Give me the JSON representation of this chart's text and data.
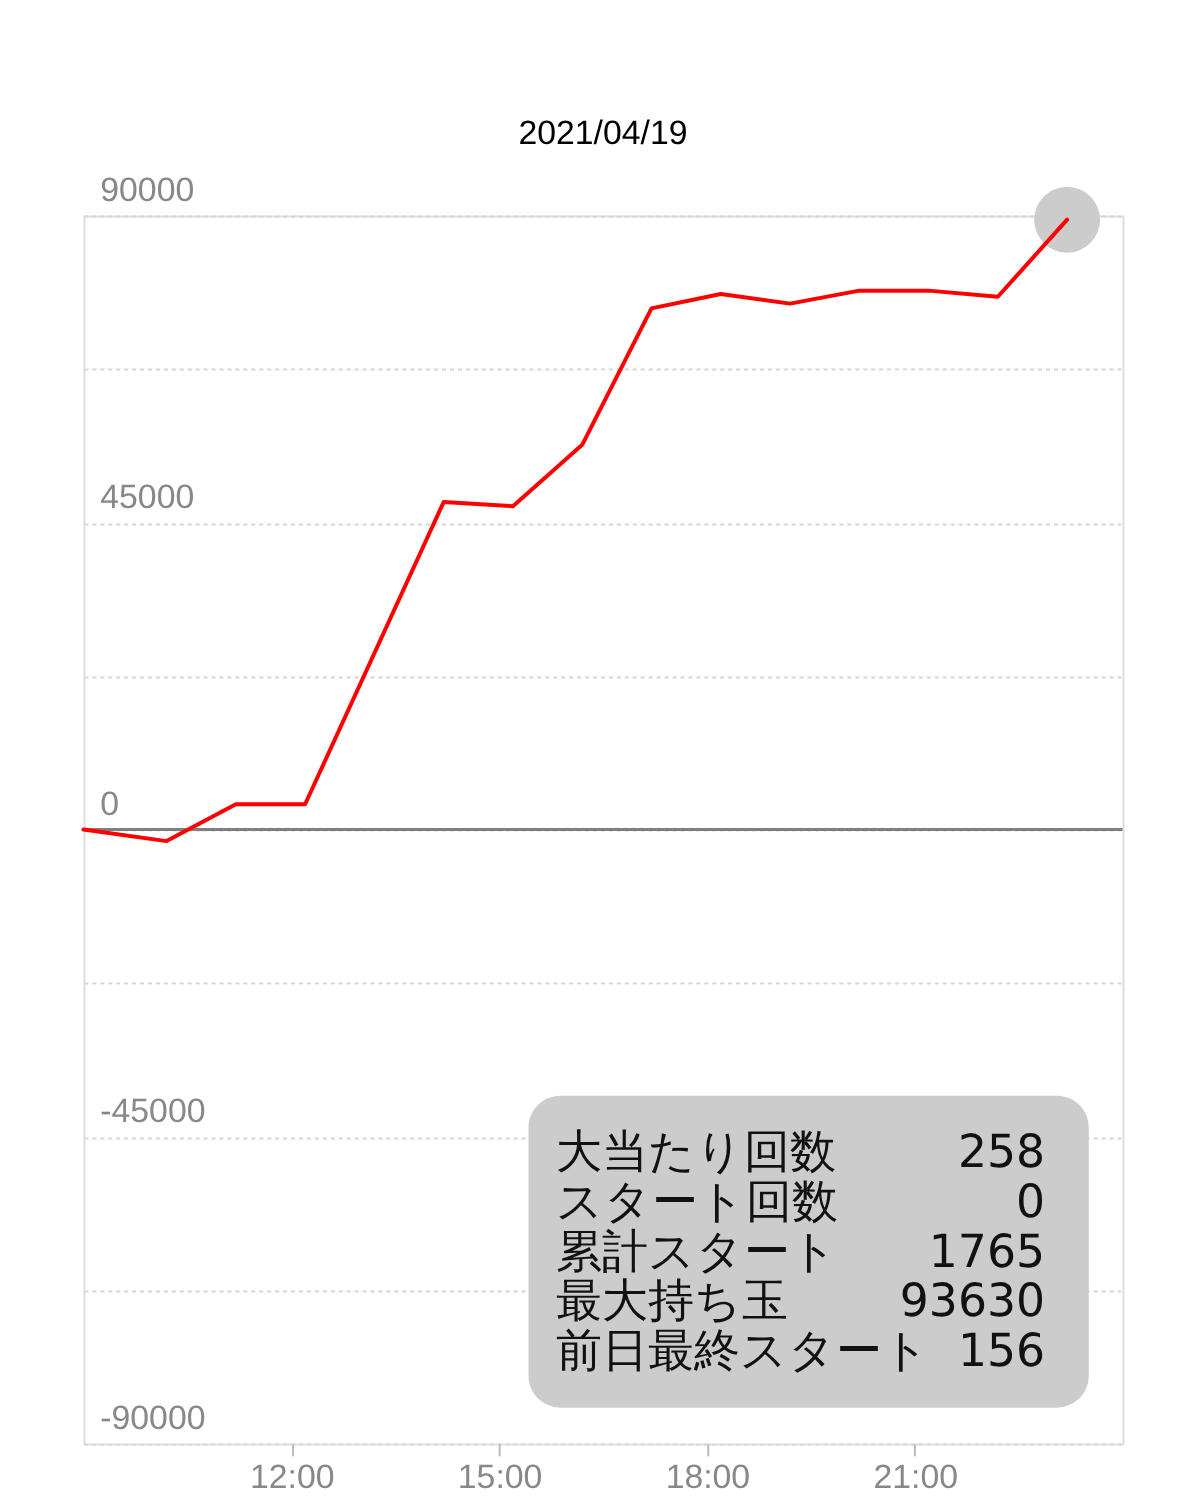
{
  "chart_data": {
    "type": "line",
    "title": "2021/04/19",
    "xlim": [
      9,
      24
    ],
    "xticks": [
      {
        "value": 12,
        "label": "12:00"
      },
      {
        "value": 15,
        "label": "15:00"
      },
      {
        "value": 18,
        "label": "18:00"
      },
      {
        "value": 21,
        "label": "21:00"
      }
    ],
    "ylim": [
      -90000,
      90000
    ],
    "yticks": [
      -90000,
      {
        "value": -67500,
        "label": null
      },
      -45000,
      {
        "value": -22500,
        "label": null
      },
      0,
      {
        "value": 22500,
        "label": null
      },
      45000,
      {
        "value": 67500,
        "label": null
      },
      90000
    ],
    "grid": "y",
    "series": [
      {
        "color": "#ff0000",
        "x": [
          9,
          10.2,
          11.2,
          12.2,
          14.2,
          15.2,
          16.2,
          17.2,
          18.2,
          19.2,
          20.2,
          21.2,
          22.2,
          23.2
        ],
        "values": [
          0,
          -1700,
          3700,
          3700,
          48000,
          47400,
          56400,
          76400,
          78500,
          77100,
          79000,
          79000,
          78100,
          89400
        ]
      },
      {
        "type": "scatter",
        "color": "#cccccc",
        "x": [
          23.2
        ],
        "values": [
          89400
        ]
      }
    ],
    "ref_lines": [
      {
        "axis": "y",
        "value": 0,
        "color": "#808080"
      }
    ],
    "annotations": [
      "大当たり回数",
      "258",
      "スタート回数",
      "0",
      "累計スタート",
      "1765",
      "最大持ち玉",
      "93630",
      "前日最終スタート",
      "156"
    ]
  }
}
